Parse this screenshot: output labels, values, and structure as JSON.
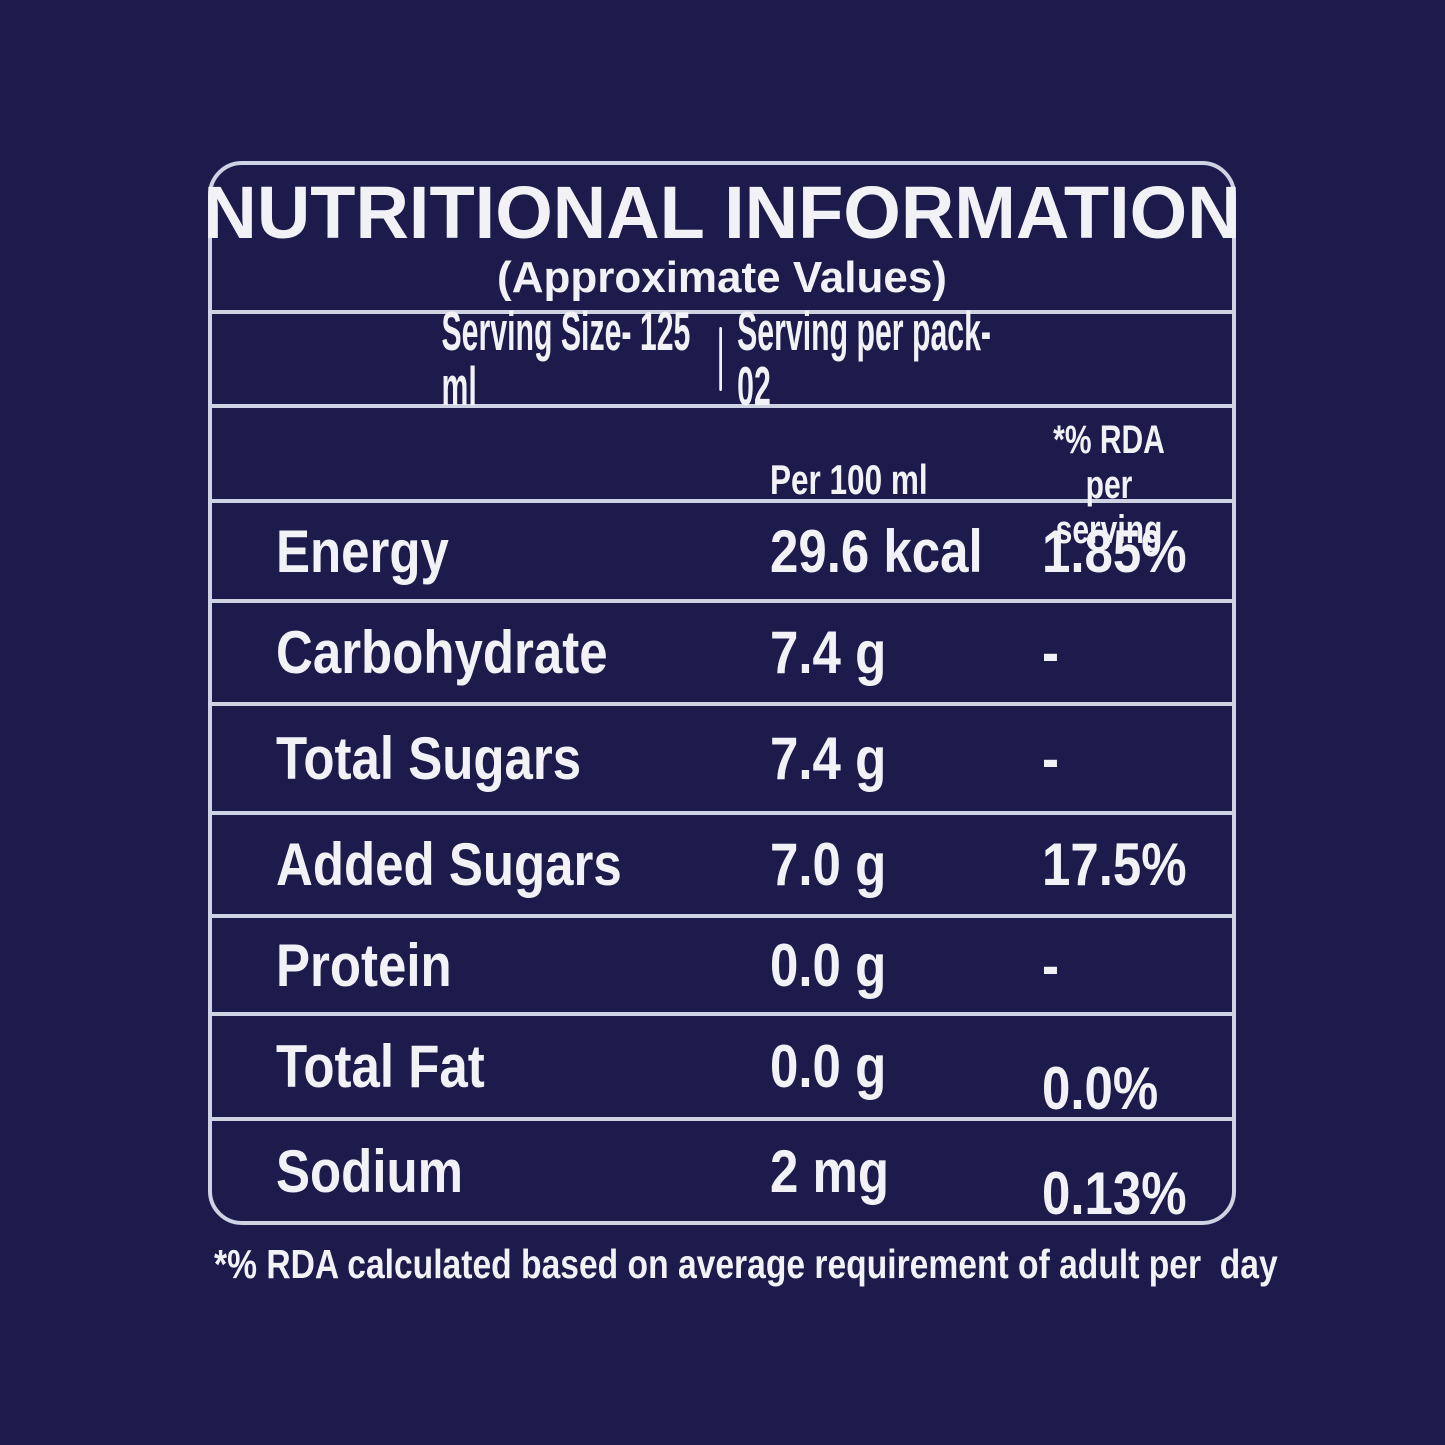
{
  "panel": {
    "title": "NUTRITIONAL INFORMATION",
    "subtitle": "(Approximate Values)",
    "serving_size": "Serving Size- 125 ml",
    "serving_per_pack": "Serving per pack- 02",
    "columns": {
      "per_100ml": "Per 100 ml",
      "rda_line1": "*% RDA",
      "rda_line2": "per serving"
    },
    "rows": [
      {
        "label": "Energy",
        "per_100ml": "29.6 kcal",
        "rda": "1.85%"
      },
      {
        "label": "Carbohydrate",
        "per_100ml": "7.4 g",
        "rda": "-"
      },
      {
        "label": "Total Sugars",
        "per_100ml": "7.4 g",
        "rda": "-"
      },
      {
        "label": "Added Sugars",
        "per_100ml": "7.0 g",
        "rda": "17.5%"
      },
      {
        "label": "Protein",
        "per_100ml": "0.0 g",
        "rda": "-"
      },
      {
        "label": "Total Fat",
        "per_100ml": "0.0 g",
        "rda": "0.0%"
      },
      {
        "label": "Sodium",
        "per_100ml": "2 mg",
        "rda": "0.13%"
      }
    ],
    "footnote": "*% RDA calculated based on average requirement of adult per  day"
  },
  "colors": {
    "background": "#1c1b4c",
    "line": "#ced3e4",
    "text": "#f2f2f6"
  }
}
